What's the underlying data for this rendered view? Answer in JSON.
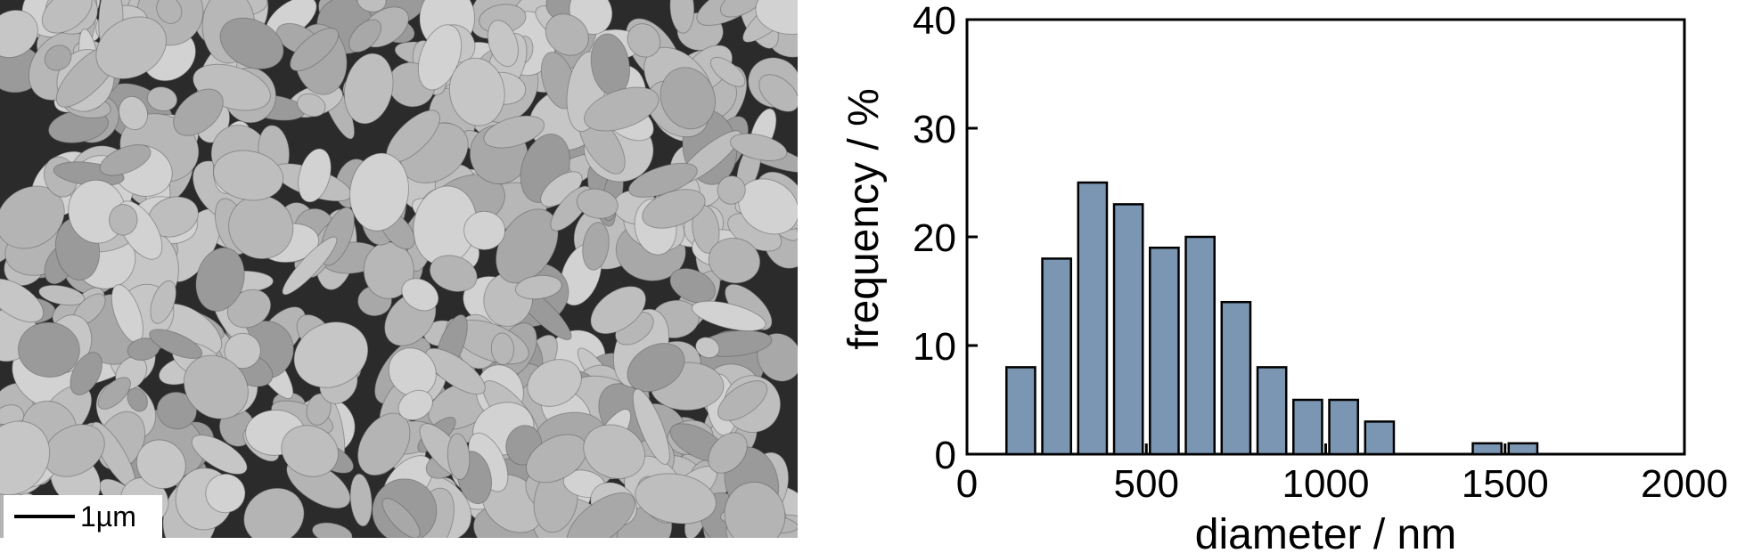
{
  "image_panel": {
    "scale_bar_label": "1µm",
    "particle_color": "#b7b7b7",
    "background_color": "#2b2b2b"
  },
  "chart_data": {
    "type": "bar",
    "x": [
      150,
      250,
      350,
      450,
      550,
      650,
      750,
      850,
      950,
      1050,
      1150,
      1450,
      1550
    ],
    "values": [
      8,
      18,
      25,
      23,
      19,
      20,
      14,
      8,
      5,
      5,
      3,
      1,
      1
    ],
    "bin_width": 80,
    "xlabel": "diameter / nm",
    "ylabel": "frequency / %",
    "xlim": [
      0,
      2000
    ],
    "ylim": [
      0,
      40
    ],
    "xticks": [
      0,
      500,
      1000,
      1500,
      2000
    ],
    "yticks": [
      0,
      10,
      20,
      30,
      40
    ],
    "bar_color": "#7b96b2",
    "edge_color": "#000000",
    "grid": false,
    "legend": false
  }
}
